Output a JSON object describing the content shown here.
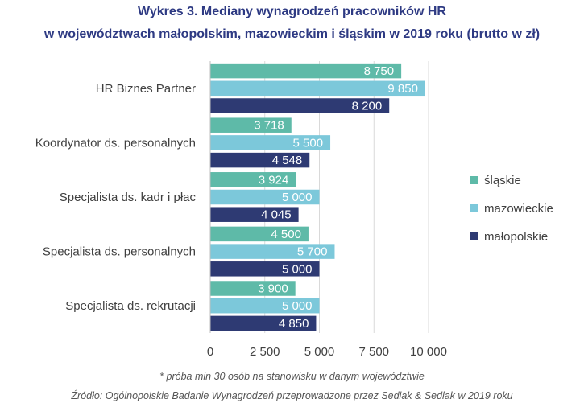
{
  "header": {
    "title_line1": "Wykres 3. Mediany wynagrodzeń pracowników HR",
    "title_line2": "w województwach małopolskim, mazowieckim i śląskim w 2019 roku (brutto w zł)"
  },
  "footer": {
    "note": "* próba min 30 osób na stanowisku w danym województwie",
    "source": "Źródło: Ogólnopolskie Badanie Wynagrodzeń przeprowadzone przez Sedlak & Sedlak w 2019 roku"
  },
  "legend": [
    {
      "name": "śląskie",
      "color": "#5ebaa8"
    },
    {
      "name": "mazowieckie",
      "color": "#7cc8da"
    },
    {
      "name": "małopolskie",
      "color": "#2e3a73"
    }
  ],
  "chart_data": {
    "type": "bar",
    "orientation": "horizontal",
    "title": "Wykres 3. Mediany wynagrodzeń pracowników HR w województwach małopolskim, mazowieckim i śląskim w 2019 roku (brutto w zł)",
    "categories": [
      "HR Biznes Partner",
      "Koordynator ds. personalnych",
      "Specjalista ds. kadr i płac",
      "Specjalista ds. personalnych",
      "Specjalista ds. rekrutacji"
    ],
    "series": [
      {
        "name": "śląskie",
        "color": "#5ebaa8",
        "values": [
          8750,
          3718,
          3924,
          4500,
          3900
        ],
        "labels": [
          "8 750",
          "3 718",
          "3 924",
          "4 500",
          "3 900"
        ]
      },
      {
        "name": "mazowieckie",
        "color": "#7cc8da",
        "values": [
          9850,
          5500,
          5000,
          5700,
          5000
        ],
        "labels": [
          "9 850",
          "5 500",
          "5 000",
          "5 700",
          "5 000"
        ]
      },
      {
        "name": "małopolskie",
        "color": "#2e3a73",
        "values": [
          8200,
          4548,
          4045,
          5000,
          4850
        ],
        "labels": [
          "8 200",
          "4 548",
          "4 045",
          "5 000",
          "4 850"
        ]
      }
    ],
    "xlim": [
      0,
      10000
    ],
    "xticks": [
      0,
      2500,
      5000,
      7500,
      10000
    ],
    "xtick_labels": [
      "0",
      "2 500",
      "5 000",
      "7 500",
      "10 000"
    ],
    "grid": true,
    "legend_position": "right"
  }
}
